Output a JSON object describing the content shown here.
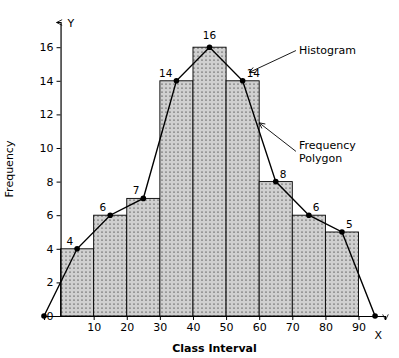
{
  "chart_data": {
    "type": "histogram",
    "xlabel": "Class Interval",
    "ylabel": "Frequency",
    "bins": [
      0,
      10,
      20,
      30,
      40,
      50,
      60,
      70,
      80,
      90
    ],
    "series": [
      {
        "type": "bar",
        "color": "#d0d0d0",
        "values": [
          4,
          6,
          7,
          14,
          16,
          14,
          8,
          6,
          5
        ],
        "data_labels": true
      },
      {
        "type": "line",
        "color": "#000000",
        "marker": "circle",
        "x": [
          -5,
          5,
          15,
          25,
          35,
          45,
          55,
          65,
          75,
          85,
          95
        ],
        "values": [
          0,
          4,
          6,
          7,
          14,
          16,
          14,
          8,
          6,
          5,
          0
        ]
      }
    ],
    "xlim": [
      -5,
      98
    ],
    "ylim": [
      0,
      17.5
    ],
    "xticks": [
      10,
      20,
      30,
      40,
      50,
      60,
      70,
      80,
      90
    ],
    "yticks": [
      0,
      2,
      4,
      6,
      8,
      10,
      12,
      14,
      16
    ],
    "grid": false,
    "annotations": [
      {
        "text": "Histogram",
        "x": 57,
        "y": 14.5,
        "text_x": 72,
        "text_y": 15.8
      },
      {
        "text": "Frequency\nPolygon",
        "x": 60,
        "y": 11.5,
        "text_x": 72,
        "text_y": 9.8
      },
      {
        "text": "Y",
        "x": 0,
        "y": 17.2
      },
      {
        "text": "X",
        "x": 96,
        "y": -0.9
      }
    ]
  }
}
